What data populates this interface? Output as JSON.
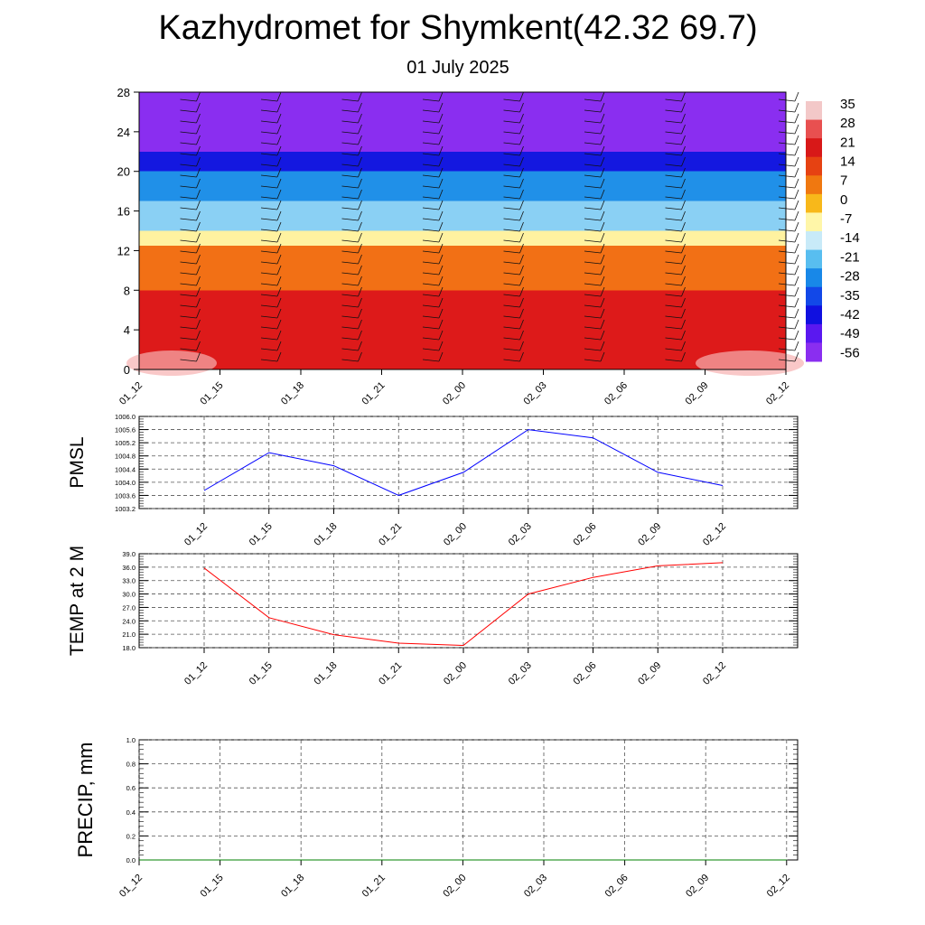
{
  "header": {
    "title": "Kazhydromet for Shymkent(42.32 69.7)",
    "subtitle": "01 July 2025"
  },
  "colors": {
    "pmsl_line": "#0000ff",
    "temp_line": "#ff0000",
    "precip_line": "#008000",
    "grid": "#555555"
  },
  "chart_data": [
    {
      "type": "heatmap",
      "title": "",
      "ylim": [
        0,
        28
      ],
      "y_ticks": [
        "0",
        "4",
        "8",
        "12",
        "16",
        "20",
        "24",
        "28"
      ],
      "x_ticks": [
        "01_12",
        "01_15",
        "01_18",
        "01_21",
        "02_00",
        "02_03",
        "02_06",
        "02_09",
        "02_12"
      ],
      "colorbar_labels": [
        "35",
        "28",
        "21",
        "14",
        "7",
        "0",
        "-7",
        "-14",
        "-21",
        "-28",
        "-35",
        "-42",
        "-49",
        "-56"
      ],
      "colorbar_colors": [
        "#f3c8c8",
        "#e85050",
        "#d81818",
        "#e64212",
        "#f07810",
        "#f8b81a",
        "#fff6a8",
        "#c8eaf8",
        "#58bef0",
        "#1888e8",
        "#1248e8",
        "#1010e0",
        "#5a18f0",
        "#8a2ef0"
      ],
      "bands": [
        {
          "from": 0,
          "to": 8,
          "color": "#dd1a1a"
        },
        {
          "from": 8,
          "to": 12.5,
          "color": "#f27015"
        },
        {
          "from": 12.5,
          "to": 14,
          "color": "#fff2a0"
        },
        {
          "from": 14,
          "to": 17,
          "color": "#8ad0f4"
        },
        {
          "from": 17,
          "to": 20,
          "color": "#2090e8"
        },
        {
          "from": 20,
          "to": 22,
          "color": "#1418e0"
        },
        {
          "from": 22,
          "to": 28,
          "color": "#8a2ef0"
        }
      ]
    },
    {
      "type": "line",
      "ylabel": "PMSL",
      "ylim": [
        1003.2,
        1006.0
      ],
      "y_ticks": [
        "1003.2",
        "1003.6",
        "1004.0",
        "1004.4",
        "1004.8",
        "1005.2",
        "1005.6",
        "1006.0"
      ],
      "categories": [
        "01_12",
        "01_15",
        "01_18",
        "01_21",
        "02_00",
        "02_03",
        "02_06",
        "02_09",
        "02_12"
      ],
      "values": [
        1003.75,
        1004.9,
        1004.5,
        1003.6,
        1004.3,
        1005.6,
        1005.35,
        1004.3,
        1003.9
      ]
    },
    {
      "type": "line",
      "ylabel": "TEMP at 2 M",
      "ylim": [
        18.0,
        39.0
      ],
      "y_ticks": [
        "18.0",
        "21.0",
        "24.0",
        "27.0",
        "30.0",
        "33.0",
        "36.0",
        "39.0"
      ],
      "categories": [
        "01_12",
        "01_15",
        "01_18",
        "01_21",
        "02_00",
        "02_03",
        "02_06",
        "02_09",
        "02_12"
      ],
      "values": [
        35.8,
        24.7,
        20.9,
        19.0,
        18.5,
        30.0,
        33.7,
        36.3,
        37.0
      ]
    },
    {
      "type": "line",
      "ylabel": "PRECIP, mm",
      "ylim": [
        0.0,
        1.0
      ],
      "y_ticks": [
        "0.0",
        "0.2",
        "0.4",
        "0.6",
        "0.8",
        "1.0"
      ],
      "categories": [
        "01_12",
        "01_15",
        "01_18",
        "01_21",
        "02_00",
        "02_03",
        "02_06",
        "02_09",
        "02_12"
      ],
      "values": [
        0,
        0,
        0,
        0,
        0,
        0,
        0,
        0,
        0
      ]
    }
  ]
}
